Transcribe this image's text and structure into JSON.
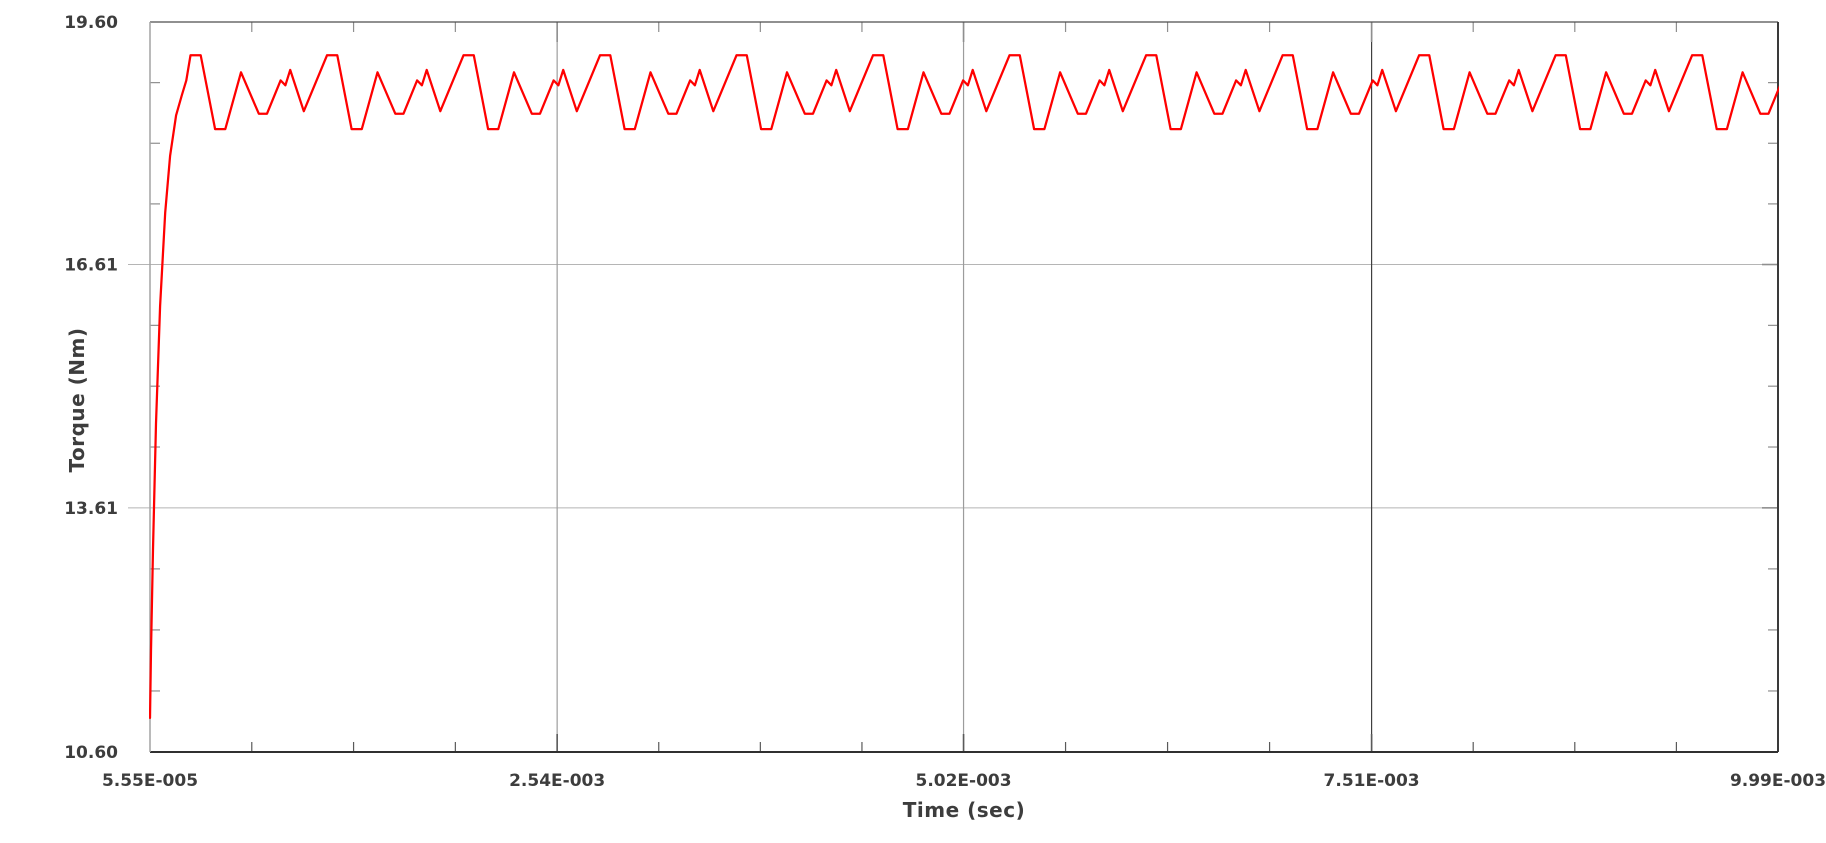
{
  "chart_data": {
    "type": "line",
    "title": "",
    "xlabel": "Time (sec)",
    "ylabel": "Torque (Nm)",
    "x_axis": {
      "range": [
        5.55e-05,
        0.00999
      ],
      "tick_values": [
        5.55e-05,
        0.00254,
        0.00502,
        0.00751,
        0.00999
      ],
      "tick_labels": [
        "5.55E-005",
        "2.54E-003",
        "5.02E-003",
        "7.51E-003",
        "9.99E-003"
      ],
      "minor_divisions": 4,
      "grid": true,
      "grid_colors": [
        "#9c9c9c",
        "#9c9c9c",
        "#3f3f3f"
      ]
    },
    "y_axis": {
      "range": [
        10.6,
        19.6
      ],
      "tick_values": [
        19.6,
        16.61,
        13.61,
        10.6
      ],
      "tick_labels": [
        "19.60",
        "16.61",
        "13.61",
        "10.60"
      ],
      "minor_divisions": 4,
      "grid": true,
      "grid_color": "#b5b5b5"
    },
    "series": [
      {
        "name": "Torque",
        "color": "#ff0000",
        "transient_points": [
          [
            5.55e-05,
            11.02
          ],
          [
            6.17e-05,
            11.85
          ],
          [
            7.4e-05,
            13.1
          ],
          [
            9.2e-05,
            14.65
          ],
          [
            0.000117,
            16.1
          ],
          [
            0.000148,
            17.25
          ],
          [
            0.000178,
            17.95
          ],
          [
            0.000215,
            18.45
          ],
          [
            0.00025,
            18.7
          ],
          [
            0.000277,
            18.88
          ]
        ],
        "ripple": {
          "t_start": 0.0003027,
          "period": 0.000833,
          "cycles": 12,
          "pattern": [
            [
              0.0,
              19.19
            ],
            [
              0.075,
              19.19
            ],
            [
              0.18,
              18.28
            ],
            [
              0.255,
              18.28
            ],
            [
              0.37,
              18.98
            ],
            [
              0.5,
              18.47
            ],
            [
              0.56,
              18.47
            ],
            [
              0.66,
              18.88
            ],
            [
              0.695,
              18.82
            ],
            [
              0.73,
              19.01
            ],
            [
              0.83,
              18.5
            ]
          ]
        },
        "ripple_min": 18.28,
        "ripple_max": 19.19,
        "steady_state_mean": 18.75
      }
    ],
    "legend": null,
    "plot_background": "#ffffff"
  },
  "colors": {
    "line": "#ff0000",
    "text": "#3d3d3d",
    "border_top": "#4d4d4d",
    "border_right": "#3a3a3a",
    "border_bottom": "#303030",
    "border_left": "#a3a3a3",
    "minor_tick": "#8f8f8f",
    "major_tick": "#5a5a5a"
  }
}
